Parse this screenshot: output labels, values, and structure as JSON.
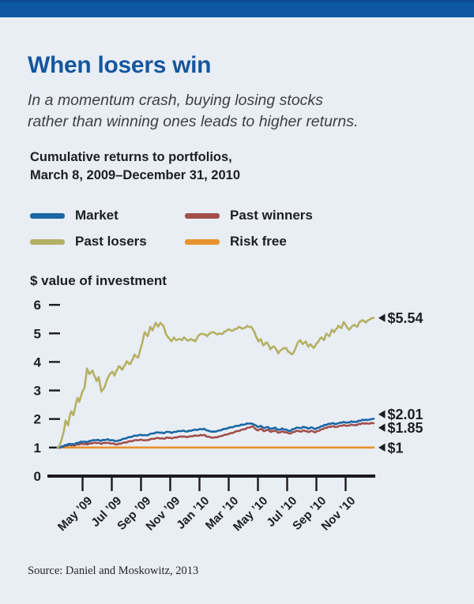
{
  "page": {
    "background": "#e9eef5",
    "accent_bar_color": "#0d57a4",
    "accent_bar_edge_color": "#0a4b91"
  },
  "header": {
    "title": "When losers win",
    "title_color": "#15569f",
    "subtitle_lines": [
      "In a momentum crash, buying losing stocks",
      "rather than winning ones leads to higher returns."
    ]
  },
  "chart_heading_lines": [
    "Cumulative returns to portfolios,",
    "March 8, 2009–December 31, 2010"
  ],
  "legend": {
    "items": [
      {
        "label": "Market",
        "color": "#1b67a5"
      },
      {
        "label": "Past winners",
        "color": "#a14f4c"
      },
      {
        "label": "Past losers",
        "color": "#b5b063"
      },
      {
        "label": "Risk free",
        "color": "#e8922f"
      }
    ]
  },
  "chart_data": {
    "type": "line",
    "title": "Cumulative returns to portfolios, March 8, 2009–December 31, 2010",
    "ylabel": "$ value of investment",
    "axis_color": "#1b1b1d",
    "label_color": "#1d1e20",
    "y_ticks": [
      0,
      1,
      2,
      3,
      4,
      5,
      6
    ],
    "ylim": [
      0,
      6
    ],
    "x_range": [
      "March 8, 2009",
      "December 31, 2010"
    ],
    "x_tick_labels": [
      "May ’09",
      "Jul ’09",
      "Sep ’09",
      "Nov ’09",
      "Jan ’10",
      "Mar ’10",
      "May ’10",
      "Jul ’10",
      "Sep ’10",
      "Nov ’10"
    ],
    "series": [
      {
        "id": "risk_free",
        "name": "Risk free",
        "color": "#e8922f",
        "end_label": "$1",
        "end_value": 1.0,
        "points": [
          [
            0,
            1.0
          ],
          [
            1,
            1.0
          ]
        ]
      },
      {
        "id": "past_winners",
        "name": "Past winners",
        "color": "#a14f4c",
        "end_label": "$1.85",
        "end_value": 1.85,
        "points": [
          [
            0,
            1.0
          ],
          [
            0.013,
            1.03
          ],
          [
            0.025,
            1.07
          ],
          [
            0.038,
            1.1
          ],
          [
            0.05,
            1.08
          ],
          [
            0.063,
            1.11
          ],
          [
            0.078,
            1.13
          ],
          [
            0.093,
            1.11
          ],
          [
            0.105,
            1.14
          ],
          [
            0.123,
            1.16
          ],
          [
            0.138,
            1.13
          ],
          [
            0.155,
            1.16
          ],
          [
            0.17,
            1.14
          ],
          [
            0.188,
            1.11
          ],
          [
            0.205,
            1.16
          ],
          [
            0.223,
            1.21
          ],
          [
            0.243,
            1.26
          ],
          [
            0.263,
            1.28
          ],
          [
            0.28,
            1.26
          ],
          [
            0.298,
            1.31
          ],
          [
            0.318,
            1.34
          ],
          [
            0.335,
            1.31
          ],
          [
            0.348,
            1.35
          ],
          [
            0.36,
            1.32
          ],
          [
            0.375,
            1.35
          ],
          [
            0.393,
            1.38
          ],
          [
            0.41,
            1.36
          ],
          [
            0.428,
            1.4
          ],
          [
            0.448,
            1.42
          ],
          [
            0.463,
            1.44
          ],
          [
            0.475,
            1.38
          ],
          [
            0.493,
            1.35
          ],
          [
            0.51,
            1.39
          ],
          [
            0.528,
            1.45
          ],
          [
            0.548,
            1.51
          ],
          [
            0.568,
            1.58
          ],
          [
            0.588,
            1.64
          ],
          [
            0.605,
            1.7
          ],
          [
            0.618,
            1.74
          ],
          [
            0.625,
            1.66
          ],
          [
            0.633,
            1.6
          ],
          [
            0.643,
            1.66
          ],
          [
            0.653,
            1.57
          ],
          [
            0.663,
            1.62
          ],
          [
            0.675,
            1.55
          ],
          [
            0.688,
            1.6
          ],
          [
            0.698,
            1.52
          ],
          [
            0.71,
            1.57
          ],
          [
            0.723,
            1.54
          ],
          [
            0.733,
            1.49
          ],
          [
            0.745,
            1.55
          ],
          [
            0.758,
            1.59
          ],
          [
            0.768,
            1.56
          ],
          [
            0.78,
            1.6
          ],
          [
            0.793,
            1.54
          ],
          [
            0.805,
            1.58
          ],
          [
            0.815,
            1.53
          ],
          [
            0.828,
            1.59
          ],
          [
            0.84,
            1.65
          ],
          [
            0.853,
            1.7
          ],
          [
            0.868,
            1.74
          ],
          [
            0.883,
            1.72
          ],
          [
            0.893,
            1.76
          ],
          [
            0.905,
            1.79
          ],
          [
            0.918,
            1.77
          ],
          [
            0.93,
            1.81
          ],
          [
            0.943,
            1.79
          ],
          [
            0.955,
            1.83
          ],
          [
            0.968,
            1.85
          ],
          [
            0.98,
            1.84
          ],
          [
            1,
            1.85
          ]
        ]
      },
      {
        "id": "market",
        "name": "Market",
        "color": "#1b67a5",
        "end_label": "$2.01",
        "end_value": 2.01,
        "points": [
          [
            0,
            1.0
          ],
          [
            0.013,
            1.04
          ],
          [
            0.025,
            1.09
          ],
          [
            0.038,
            1.13
          ],
          [
            0.05,
            1.11
          ],
          [
            0.063,
            1.16
          ],
          [
            0.078,
            1.2
          ],
          [
            0.093,
            1.18
          ],
          [
            0.105,
            1.23
          ],
          [
            0.123,
            1.26
          ],
          [
            0.138,
            1.24
          ],
          [
            0.155,
            1.28
          ],
          [
            0.17,
            1.26
          ],
          [
            0.188,
            1.23
          ],
          [
            0.205,
            1.3
          ],
          [
            0.223,
            1.36
          ],
          [
            0.243,
            1.42
          ],
          [
            0.263,
            1.45
          ],
          [
            0.28,
            1.43
          ],
          [
            0.298,
            1.49
          ],
          [
            0.318,
            1.53
          ],
          [
            0.335,
            1.5
          ],
          [
            0.348,
            1.55
          ],
          [
            0.36,
            1.51
          ],
          [
            0.375,
            1.55
          ],
          [
            0.393,
            1.58
          ],
          [
            0.41,
            1.56
          ],
          [
            0.428,
            1.61
          ],
          [
            0.448,
            1.64
          ],
          [
            0.463,
            1.66
          ],
          [
            0.475,
            1.6
          ],
          [
            0.493,
            1.56
          ],
          [
            0.51,
            1.6
          ],
          [
            0.528,
            1.66
          ],
          [
            0.548,
            1.71
          ],
          [
            0.568,
            1.76
          ],
          [
            0.588,
            1.8
          ],
          [
            0.605,
            1.84
          ],
          [
            0.618,
            1.82
          ],
          [
            0.633,
            1.72
          ],
          [
            0.643,
            1.76
          ],
          [
            0.653,
            1.68
          ],
          [
            0.663,
            1.72
          ],
          [
            0.675,
            1.65
          ],
          [
            0.688,
            1.7
          ],
          [
            0.698,
            1.62
          ],
          [
            0.71,
            1.67
          ],
          [
            0.723,
            1.63
          ],
          [
            0.733,
            1.58
          ],
          [
            0.745,
            1.65
          ],
          [
            0.758,
            1.7
          ],
          [
            0.768,
            1.68
          ],
          [
            0.78,
            1.72
          ],
          [
            0.793,
            1.66
          ],
          [
            0.805,
            1.7
          ],
          [
            0.815,
            1.64
          ],
          [
            0.828,
            1.7
          ],
          [
            0.84,
            1.76
          ],
          [
            0.853,
            1.81
          ],
          [
            0.868,
            1.85
          ],
          [
            0.883,
            1.83
          ],
          [
            0.893,
            1.87
          ],
          [
            0.905,
            1.9
          ],
          [
            0.918,
            1.88
          ],
          [
            0.93,
            1.92
          ],
          [
            0.943,
            1.9
          ],
          [
            0.955,
            1.94
          ],
          [
            0.968,
            1.97
          ],
          [
            0.98,
            1.96
          ],
          [
            0.99,
            1.99
          ],
          [
            1,
            2.01
          ]
        ]
      },
      {
        "id": "past_losers",
        "name": "Past losers",
        "color": "#b5b063",
        "end_label": "$5.54",
        "end_value": 5.54,
        "points": [
          [
            0,
            1.0
          ],
          [
            0.005,
            1.05
          ],
          [
            0.013,
            1.3
          ],
          [
            0.02,
            1.6
          ],
          [
            0.025,
            1.95
          ],
          [
            0.033,
            1.78
          ],
          [
            0.038,
            2.1
          ],
          [
            0.043,
            2.27
          ],
          [
            0.05,
            2.13
          ],
          [
            0.058,
            2.55
          ],
          [
            0.063,
            2.74
          ],
          [
            0.068,
            2.6
          ],
          [
            0.078,
            2.95
          ],
          [
            0.085,
            3.1
          ],
          [
            0.093,
            3.77
          ],
          [
            0.1,
            3.57
          ],
          [
            0.11,
            3.7
          ],
          [
            0.123,
            3.33
          ],
          [
            0.13,
            3.47
          ],
          [
            0.138,
            2.96
          ],
          [
            0.148,
            3.1
          ],
          [
            0.16,
            3.47
          ],
          [
            0.173,
            3.66
          ],
          [
            0.18,
            3.52
          ],
          [
            0.193,
            3.85
          ],
          [
            0.205,
            3.73
          ],
          [
            0.218,
            4.02
          ],
          [
            0.23,
            3.93
          ],
          [
            0.243,
            4.26
          ],
          [
            0.255,
            4.16
          ],
          [
            0.263,
            4.49
          ],
          [
            0.275,
            5.04
          ],
          [
            0.285,
            4.9
          ],
          [
            0.293,
            5.23
          ],
          [
            0.3,
            5.1
          ],
          [
            0.31,
            5.37
          ],
          [
            0.318,
            5.23
          ],
          [
            0.325,
            5.37
          ],
          [
            0.335,
            5.26
          ],
          [
            0.343,
            4.96
          ],
          [
            0.35,
            4.86
          ],
          [
            0.36,
            4.72
          ],
          [
            0.368,
            4.86
          ],
          [
            0.375,
            4.76
          ],
          [
            0.385,
            4.81
          ],
          [
            0.393,
            4.76
          ],
          [
            0.4,
            4.86
          ],
          [
            0.41,
            4.76
          ],
          [
            0.423,
            4.8
          ],
          [
            0.435,
            4.72
          ],
          [
            0.448,
            4.95
          ],
          [
            0.455,
            4.99
          ],
          [
            0.473,
            4.9
          ],
          [
            0.488,
            5.04
          ],
          [
            0.505,
            4.96
          ],
          [
            0.523,
            4.99
          ],
          [
            0.538,
            5.13
          ],
          [
            0.555,
            5.1
          ],
          [
            0.573,
            5.23
          ],
          [
            0.588,
            5.18
          ],
          [
            0.6,
            5.27
          ],
          [
            0.613,
            5.23
          ],
          [
            0.623,
            5.04
          ],
          [
            0.635,
            4.72
          ],
          [
            0.643,
            4.8
          ],
          [
            0.65,
            4.58
          ],
          [
            0.663,
            4.68
          ],
          [
            0.673,
            4.44
          ],
          [
            0.685,
            4.54
          ],
          [
            0.698,
            4.3
          ],
          [
            0.71,
            4.44
          ],
          [
            0.723,
            4.49
          ],
          [
            0.73,
            4.35
          ],
          [
            0.743,
            4.27
          ],
          [
            0.75,
            4.4
          ],
          [
            0.76,
            4.68
          ],
          [
            0.768,
            4.76
          ],
          [
            0.775,
            4.62
          ],
          [
            0.785,
            4.72
          ],
          [
            0.793,
            4.53
          ],
          [
            0.8,
            4.62
          ],
          [
            0.81,
            4.49
          ],
          [
            0.823,
            4.68
          ],
          [
            0.835,
            4.86
          ],
          [
            0.843,
            4.76
          ],
          [
            0.85,
            4.99
          ],
          [
            0.86,
            4.9
          ],
          [
            0.868,
            5.13
          ],
          [
            0.875,
            5.04
          ],
          [
            0.888,
            5.27
          ],
          [
            0.898,
            5.18
          ],
          [
            0.905,
            5.4
          ],
          [
            0.913,
            5.27
          ],
          [
            0.923,
            5.13
          ],
          [
            0.93,
            5.23
          ],
          [
            0.938,
            5.3
          ],
          [
            0.948,
            5.23
          ],
          [
            0.955,
            5.4
          ],
          [
            0.968,
            5.45
          ],
          [
            0.975,
            5.38
          ],
          [
            0.988,
            5.48
          ],
          [
            1,
            5.54
          ]
        ]
      }
    ]
  },
  "footer": {
    "source": "Source: Daniel and Moskowitz, 2013"
  }
}
